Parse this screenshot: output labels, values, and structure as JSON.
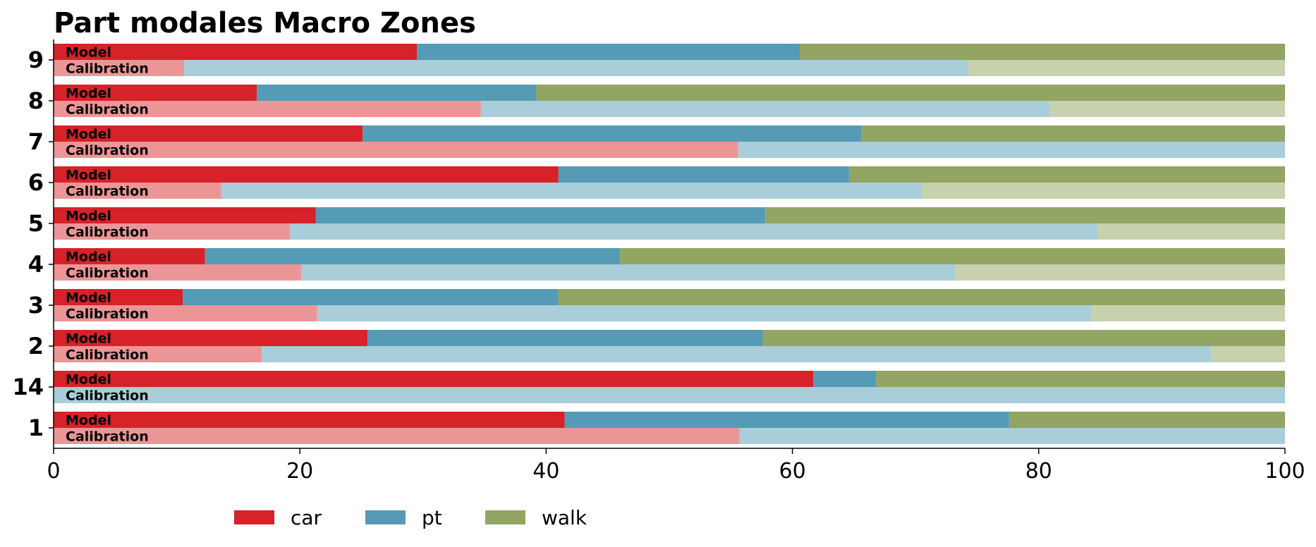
{
  "chart_data": {
    "type": "bar",
    "orientation": "horizontal",
    "stacked": true,
    "title": "Part modales Macro Zones",
    "xlabel": "",
    "ylabel": "",
    "xlim": [
      0,
      100
    ],
    "xticks": [
      0,
      20,
      40,
      60,
      80,
      100
    ],
    "categories": [
      "1",
      "14",
      "2",
      "3",
      "4",
      "5",
      "6",
      "7",
      "8",
      "9"
    ],
    "bar_labels": [
      "Model",
      "Calibration"
    ],
    "modes": [
      "car",
      "pt",
      "walk"
    ],
    "colors": {
      "model": {
        "car": "#d62228",
        "pt": "#559bb5",
        "walk": "#92a563"
      },
      "calibration": {
        "car": "#ec9597",
        "pt": "#a9cdd9",
        "walk": "#c8d1ae"
      }
    },
    "series": [
      {
        "name": "car",
        "model": [
          41.5,
          61.7,
          25.5,
          10.5,
          12.3,
          21.3,
          41.0,
          25.1,
          16.5,
          29.5
        ],
        "calibration": [
          55.7,
          0.0,
          16.9,
          21.4,
          20.1,
          19.2,
          13.6,
          55.6,
          34.7,
          10.6
        ]
      },
      {
        "name": "pt",
        "model": [
          36.1,
          5.1,
          32.1,
          30.5,
          33.7,
          36.5,
          23.6,
          40.5,
          22.7,
          31.1
        ],
        "calibration": [
          44.3,
          100.0,
          77.1,
          62.9,
          53.1,
          65.6,
          56.9,
          44.4,
          46.2,
          63.7
        ]
      },
      {
        "name": "walk",
        "model": [
          22.4,
          33.2,
          42.4,
          59.0,
          54.0,
          42.2,
          35.4,
          34.4,
          60.8,
          39.4
        ],
        "calibration": [
          0.0,
          0.0,
          6.0,
          15.7,
          26.8,
          15.2,
          29.5,
          0.0,
          19.1,
          25.7
        ]
      }
    ],
    "legend": {
      "position": "bottom",
      "entries": [
        "car",
        "pt",
        "walk"
      ]
    },
    "grid": false
  }
}
